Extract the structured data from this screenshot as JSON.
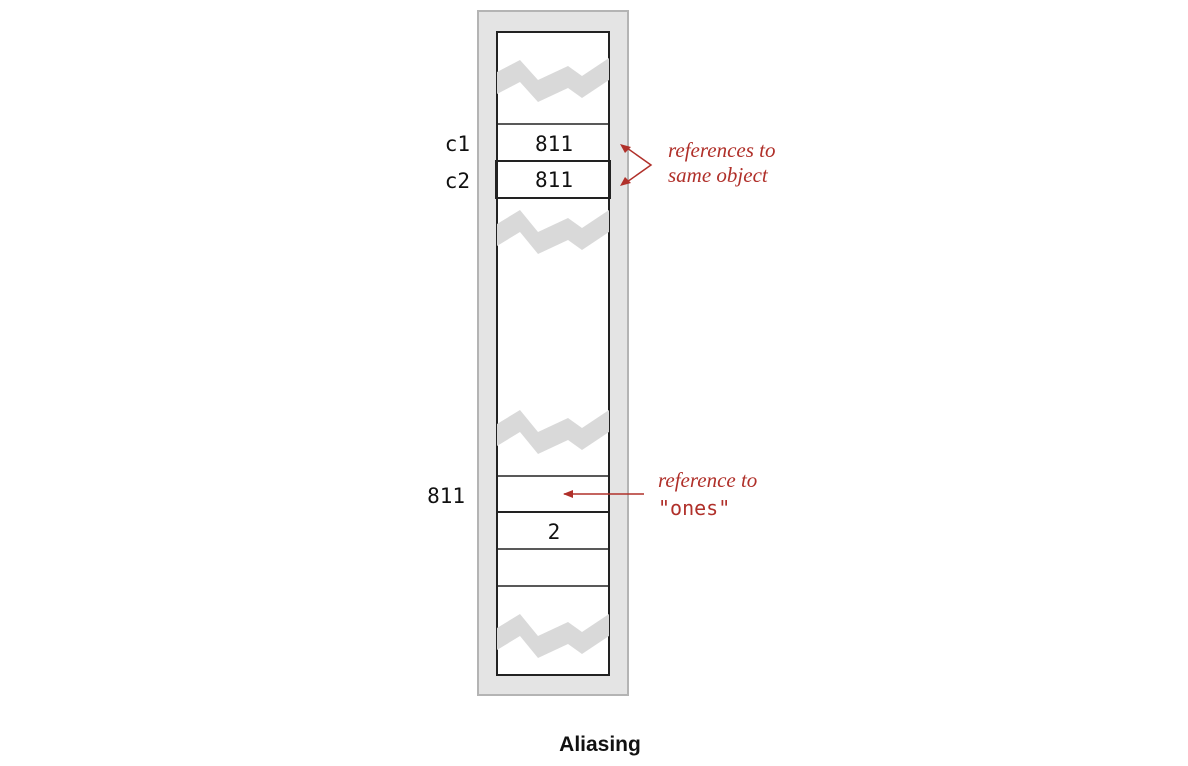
{
  "colors": {
    "annotation": "#b0302a",
    "frame_fill": "#e4e4e4",
    "frame_stroke": "#b4b4b4",
    "break_fill": "#d9d9d9"
  },
  "labels": {
    "c1": "c1",
    "c2": "c2",
    "address": "811"
  },
  "cells": {
    "c1_value": "811",
    "c2_value": "811",
    "length_value": "2"
  },
  "annotations": {
    "same_line1": "references to",
    "same_line2": "same object",
    "ones_line1": "reference to",
    "ones_line2": "\"ones\""
  },
  "caption": "Aliasing"
}
